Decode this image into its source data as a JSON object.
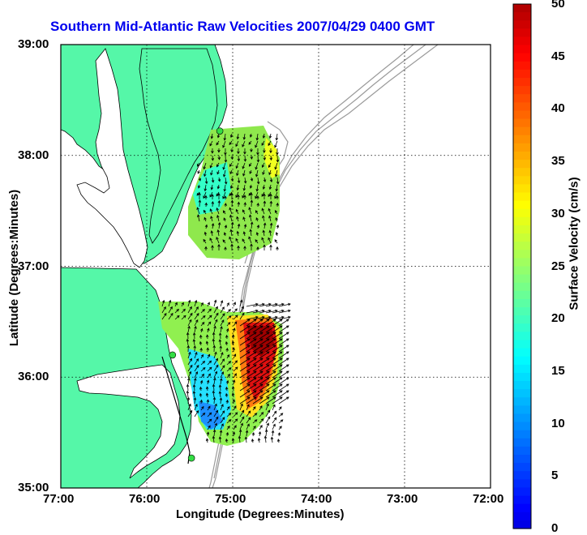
{
  "title": "Southern Mid-Atlantic Raw Velocities 2007/04/29 0400 GMT",
  "x_axis": {
    "label": "Longitude (Degrees:Minutes)",
    "ticks": [
      "77:00",
      "76:00",
      "75:00",
      "74:00",
      "73:00",
      "72:00"
    ]
  },
  "y_axis": {
    "label": "Latitude (Degrees:Minutes)",
    "ticks": [
      "39:00",
      "38:00",
      "37:00",
      "36:00",
      "35:00"
    ]
  },
  "colorbar": {
    "label": "Surface Velocity (cm/s)",
    "ticks": [
      "50",
      "45",
      "40",
      "35",
      "30",
      "25",
      "20",
      "15",
      "10",
      "5",
      "0"
    ],
    "min": 0,
    "max": 50,
    "colormap": "jet"
  },
  "colors": {
    "land": "#55f7a8",
    "water": "#ffffff",
    "title": "#0000ee",
    "bathymetry": "#9a9a9a",
    "station": "#33dd44"
  },
  "map_extent": {
    "lon_west": -77.0,
    "lon_east": -72.0,
    "lat_south": 35.0,
    "lat_north": 39.0
  },
  "grid": true,
  "stations": [
    {
      "lon": -75.15,
      "lat": 38.22
    },
    {
      "lon": -75.7,
      "lat": 36.2
    },
    {
      "lon": -75.48,
      "lat": 35.27
    }
  ]
}
